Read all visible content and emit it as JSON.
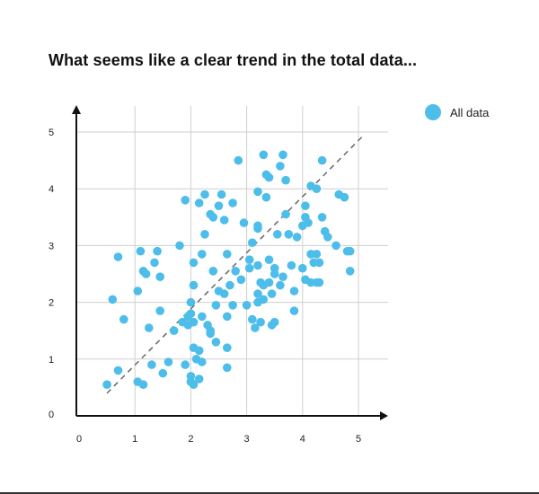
{
  "chart_data": {
    "type": "scatter",
    "title": "What seems like a clear trend in the total data...",
    "xlabel": "",
    "ylabel": "",
    "xlim": [
      0,
      5.3
    ],
    "ylim": [
      0,
      5.2
    ],
    "x_ticks": [
      "0",
      "1",
      "2",
      "3",
      "4",
      "5"
    ],
    "y_ticks": [
      "0",
      "1",
      "2",
      "3",
      "4",
      "5"
    ],
    "grid": true,
    "legend_position": "top-right",
    "trend_line": {
      "style": "dashed",
      "from": [
        0.5,
        0.4
      ],
      "to": [
        5.1,
        4.95
      ],
      "color": "#666666"
    },
    "series": [
      {
        "name": "All data",
        "color": "#4dbde9",
        "points": [
          [
            0.5,
            0.55
          ],
          [
            0.6,
            2.05
          ],
          [
            0.7,
            2.8
          ],
          [
            0.8,
            1.7
          ],
          [
            0.7,
            0.8
          ],
          [
            1.05,
            0.6
          ],
          [
            1.15,
            0.55
          ],
          [
            1.05,
            2.2
          ],
          [
            1.1,
            2.9
          ],
          [
            1.15,
            2.55
          ],
          [
            1.2,
            2.5
          ],
          [
            1.25,
            1.55
          ],
          [
            1.3,
            0.9
          ],
          [
            1.35,
            2.7
          ],
          [
            1.4,
            2.9
          ],
          [
            1.45,
            1.85
          ],
          [
            1.45,
            2.45
          ],
          [
            1.5,
            0.75
          ],
          [
            1.6,
            0.95
          ],
          [
            1.7,
            1.5
          ],
          [
            1.8,
            3.0
          ],
          [
            1.85,
            1.65
          ],
          [
            1.9,
            0.9
          ],
          [
            1.9,
            3.8
          ],
          [
            1.95,
            1.75
          ],
          [
            1.95,
            1.6
          ],
          [
            2.0,
            2.0
          ],
          [
            2.0,
            1.8
          ],
          [
            2.0,
            0.7
          ],
          [
            2.0,
            0.6
          ],
          [
            2.05,
            0.55
          ],
          [
            2.05,
            1.2
          ],
          [
            2.05,
            2.7
          ],
          [
            2.05,
            2.3
          ],
          [
            2.05,
            1.65
          ],
          [
            2.1,
            1.0
          ],
          [
            2.15,
            0.65
          ],
          [
            2.15,
            1.15
          ],
          [
            2.15,
            3.75
          ],
          [
            2.2,
            0.95
          ],
          [
            2.2,
            1.75
          ],
          [
            2.2,
            2.85
          ],
          [
            2.25,
            3.2
          ],
          [
            2.25,
            3.9
          ],
          [
            2.3,
            1.6
          ],
          [
            2.35,
            1.5
          ],
          [
            2.35,
            1.45
          ],
          [
            2.35,
            3.55
          ],
          [
            2.4,
            2.55
          ],
          [
            2.4,
            3.5
          ],
          [
            2.45,
            1.3
          ],
          [
            2.45,
            1.95
          ],
          [
            2.5,
            2.2
          ],
          [
            2.5,
            3.7
          ],
          [
            2.55,
            3.9
          ],
          [
            2.6,
            2.15
          ],
          [
            2.6,
            3.45
          ],
          [
            2.65,
            1.2
          ],
          [
            2.65,
            1.75
          ],
          [
            2.65,
            2.85
          ],
          [
            2.65,
            0.85
          ],
          [
            2.7,
            2.3
          ],
          [
            2.75,
            1.95
          ],
          [
            2.75,
            3.75
          ],
          [
            2.8,
            2.55
          ],
          [
            2.85,
            4.5
          ],
          [
            2.9,
            2.4
          ],
          [
            2.95,
            3.4
          ],
          [
            3.0,
            1.95
          ],
          [
            3.05,
            2.6
          ],
          [
            3.05,
            2.75
          ],
          [
            3.1,
            3.05
          ],
          [
            3.1,
            1.7
          ],
          [
            3.15,
            1.55
          ],
          [
            3.2,
            2.0
          ],
          [
            3.2,
            2.15
          ],
          [
            3.2,
            2.65
          ],
          [
            3.2,
            3.3
          ],
          [
            3.2,
            3.35
          ],
          [
            3.2,
            3.95
          ],
          [
            3.25,
            1.65
          ],
          [
            3.25,
            2.35
          ],
          [
            3.3,
            2.05
          ],
          [
            3.3,
            2.3
          ],
          [
            3.3,
            4.6
          ],
          [
            3.35,
            4.25
          ],
          [
            3.35,
            3.85
          ],
          [
            3.4,
            2.35
          ],
          [
            3.4,
            2.75
          ],
          [
            3.4,
            4.2
          ],
          [
            3.45,
            1.6
          ],
          [
            3.45,
            2.15
          ],
          [
            3.5,
            1.65
          ],
          [
            3.5,
            2.6
          ],
          [
            3.5,
            2.5
          ],
          [
            3.55,
            3.2
          ],
          [
            3.6,
            2.3
          ],
          [
            3.6,
            4.4
          ],
          [
            3.65,
            4.6
          ],
          [
            3.65,
            2.45
          ],
          [
            3.7,
            3.55
          ],
          [
            3.7,
            4.15
          ],
          [
            3.75,
            3.2
          ],
          [
            3.8,
            2.65
          ],
          [
            3.85,
            2.2
          ],
          [
            3.85,
            1.85
          ],
          [
            3.9,
            3.15
          ],
          [
            4.0,
            2.6
          ],
          [
            4.0,
            3.35
          ],
          [
            4.05,
            3.5
          ],
          [
            4.05,
            3.7
          ],
          [
            4.05,
            2.4
          ],
          [
            4.1,
            3.4
          ],
          [
            4.15,
            2.85
          ],
          [
            4.15,
            2.35
          ],
          [
            4.15,
            4.05
          ],
          [
            4.2,
            2.7
          ],
          [
            4.25,
            2.85
          ],
          [
            4.25,
            2.35
          ],
          [
            4.25,
            4.0
          ],
          [
            4.3,
            2.35
          ],
          [
            4.3,
            2.7
          ],
          [
            4.35,
            4.5
          ],
          [
            4.35,
            3.5
          ],
          [
            4.4,
            3.25
          ],
          [
            4.45,
            3.15
          ],
          [
            4.6,
            3.0
          ],
          [
            4.65,
            3.9
          ],
          [
            4.75,
            3.85
          ],
          [
            4.8,
            2.9
          ],
          [
            4.85,
            2.55
          ],
          [
            4.85,
            2.9
          ]
        ]
      }
    ]
  }
}
